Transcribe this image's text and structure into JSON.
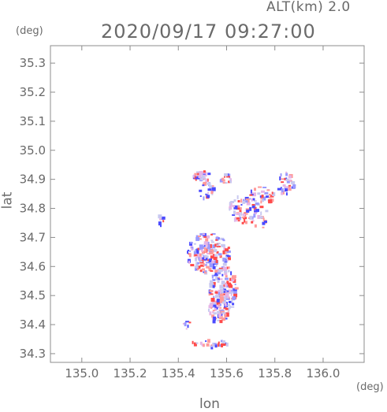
{
  "header": {
    "altitude_label": "ALT(km) 2.0",
    "timestamp": "2020/09/17 09:27:00"
  },
  "axes": {
    "x_label": "lon",
    "y_label": "lat",
    "x_unit": "(deg)",
    "y_unit": "(deg)",
    "xlim": [
      134.87,
      136.17
    ],
    "ylim": [
      34.27,
      35.36
    ],
    "x_ticks": [
      135.0,
      135.2,
      135.4,
      135.6,
      135.8,
      136.0
    ],
    "x_tick_labels": [
      "135.0",
      "135.2",
      "135.4",
      "135.6",
      "135.8",
      "136.0"
    ],
    "y_ticks": [
      34.3,
      34.4,
      34.5,
      34.6,
      34.7,
      34.8,
      34.9,
      35.0,
      35.1,
      35.2,
      35.3
    ],
    "y_tick_labels": [
      "34.3",
      "34.4",
      "34.5",
      "34.6",
      "34.7",
      "34.8",
      "34.9",
      "35.0",
      "35.1",
      "35.2",
      "35.3"
    ],
    "grid": false
  },
  "colors": {
    "frame": "#8c8c8c",
    "positive": "#ff4a4a",
    "negative": "#4a4aff",
    "neutral": "#c8c8f0"
  },
  "echo_regions": [
    {
      "lon": 135.5,
      "lat": 34.915,
      "rlon": 0.04,
      "rlat": 0.018,
      "n": 25
    },
    {
      "lon": 135.6,
      "lat": 34.905,
      "rlon": 0.03,
      "rlat": 0.018,
      "n": 18
    },
    {
      "lon": 135.51,
      "lat": 34.865,
      "rlon": 0.03,
      "rlat": 0.03,
      "n": 20
    },
    {
      "lon": 135.66,
      "lat": 34.8,
      "rlon": 0.06,
      "rlat": 0.05,
      "n": 55
    },
    {
      "lon": 135.74,
      "lat": 34.85,
      "rlon": 0.05,
      "rlat": 0.035,
      "n": 35
    },
    {
      "lon": 135.84,
      "lat": 34.89,
      "rlon": 0.035,
      "rlat": 0.04,
      "n": 35
    },
    {
      "lon": 135.73,
      "lat": 34.78,
      "rlon": 0.04,
      "rlat": 0.05,
      "n": 22
    },
    {
      "lon": 135.32,
      "lat": 34.76,
      "rlon": 0.02,
      "rlat": 0.02,
      "n": 6
    },
    {
      "lon": 135.52,
      "lat": 34.65,
      "rlon": 0.09,
      "rlat": 0.07,
      "n": 170
    },
    {
      "lon": 135.58,
      "lat": 34.52,
      "rlon": 0.055,
      "rlat": 0.09,
      "n": 150
    },
    {
      "lon": 135.56,
      "lat": 34.45,
      "rlon": 0.04,
      "rlat": 0.04,
      "n": 45
    },
    {
      "lon": 135.53,
      "lat": 34.34,
      "rlon": 0.08,
      "rlat": 0.012,
      "n": 30
    },
    {
      "lon": 135.43,
      "lat": 34.4,
      "rlon": 0.015,
      "rlat": 0.03,
      "n": 6
    }
  ]
}
